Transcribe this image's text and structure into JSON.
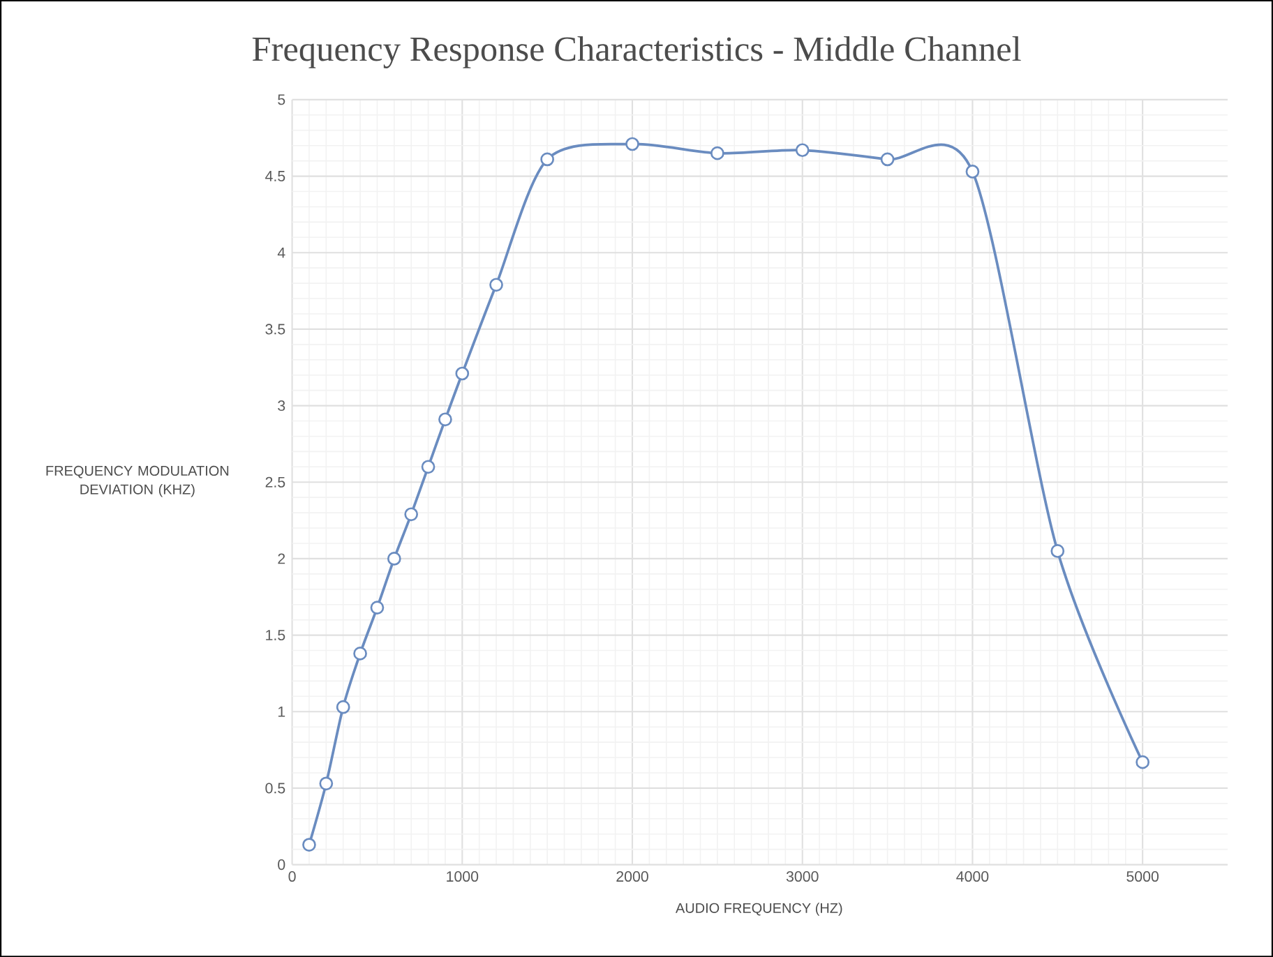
{
  "chart_data": {
    "type": "line",
    "title": "Frequency Response Characteristics - Middle Channel",
    "xlabel": "AUDIO FREQUENCY (HZ)",
    "ylabel": "FREQUENCY MODULATION DEVIATION (KHZ)",
    "x": [
      100,
      200,
      300,
      400,
      500,
      600,
      700,
      800,
      900,
      1000,
      1200,
      1500,
      2000,
      2500,
      3000,
      3500,
      4000,
      4500,
      5000
    ],
    "series": [
      {
        "color": "#6a8cc0",
        "values": [
          0.13,
          0.53,
          1.03,
          1.38,
          1.68,
          2.0,
          2.29,
          2.6,
          2.91,
          3.21,
          3.79,
          4.61,
          4.71,
          4.65,
          4.67,
          4.61,
          4.53,
          2.05,
          0.67
        ]
      }
    ],
    "xlim": [
      0,
      5500
    ],
    "ylim": [
      0,
      5
    ],
    "xticks": [
      0,
      1000,
      2000,
      3000,
      4000,
      5000
    ],
    "yticks": [
      0,
      0.5,
      1,
      1.5,
      2,
      2.5,
      3,
      3.5,
      4,
      4.5,
      5
    ],
    "grid": true,
    "marker": "circle",
    "line_style": "solid"
  }
}
